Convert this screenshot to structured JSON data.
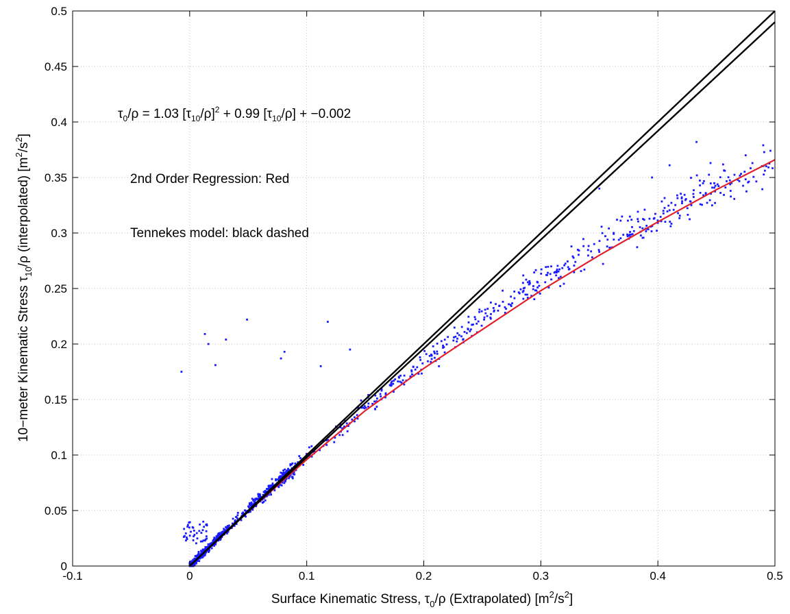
{
  "chart_data": {
    "type": "scatter",
    "xlim": [
      -0.1,
      0.5
    ],
    "ylim": [
      0,
      0.5
    ],
    "xticks": [
      "-0.1",
      "0",
      "0.1",
      "0.2",
      "0.3",
      "0.4",
      "0.5"
    ],
    "yticks": [
      "0",
      "0.05",
      "0.1",
      "0.15",
      "0.2",
      "0.25",
      "0.3",
      "0.35",
      "0.4",
      "0.45",
      "0.5"
    ],
    "grid": true,
    "xlabel": {
      "pre": "Surface Kinematic Stress, τ",
      "sub": "0",
      "mid": "/ρ (Extrapolated) [m",
      "sup": "2",
      "post": "/s",
      "sup2": "2",
      "end": "]"
    },
    "ylabel": {
      "pre": "10−meter Kinematic Stress τ",
      "sub": "10",
      "mid": "/ρ (interpolated) [m",
      "sup": "2",
      "post": "/s",
      "sup2": "2",
      "end": "]"
    },
    "annotations": {
      "equation": {
        "p1": "τ",
        "s1": "0",
        "p2": "/ρ = 1.03 [τ",
        "s2": "10",
        "p3": "/ρ]",
        "u1": "2",
        "p4": " + 0.99 [τ",
        "s3": "10",
        "p5": "/ρ] + −0.002"
      },
      "regression": "2nd Order Regression: Red",
      "model": "Tennekes model: black dashed"
    },
    "series": [
      {
        "kind": "scatter",
        "color": "#1a1aff",
        "trend": {
          "a": -0.65,
          "b": 1.05,
          "c": 0.0
        },
        "outliers": [
          [
            -0.007,
            0.175
          ],
          [
            0.013,
            0.209
          ],
          [
            0.016,
            0.2
          ],
          [
            0.022,
            0.181
          ],
          [
            0.031,
            0.204
          ],
          [
            0.049,
            0.222
          ],
          [
            0.078,
            0.187
          ],
          [
            0.081,
            0.193
          ],
          [
            0.112,
            0.18
          ],
          [
            0.118,
            0.22
          ],
          [
            0.137,
            0.195
          ],
          [
            0.35,
            0.34
          ],
          [
            0.433,
            0.382
          ],
          [
            0.49,
            0.379
          ],
          [
            0.445,
            0.363
          ],
          [
            0.475,
            0.37
          ],
          [
            0.395,
            0.35
          ],
          [
            0.41,
            0.361
          ]
        ]
      },
      {
        "kind": "line",
        "color": "#e0202a",
        "x": [
          0.0,
          0.05,
          0.1,
          0.15,
          0.2,
          0.25,
          0.3,
          0.35,
          0.4,
          0.45,
          0.5
        ],
        "y": [
          0.0,
          0.049,
          0.096,
          0.14,
          0.178,
          0.213,
          0.248,
          0.28,
          0.31,
          0.339,
          0.366
        ]
      },
      {
        "kind": "line",
        "color": "#000000",
        "x": [
          0.0,
          0.1,
          0.2,
          0.3,
          0.4,
          0.5
        ],
        "y": [
          0.0,
          0.1,
          0.2,
          0.3,
          0.4,
          0.5
        ]
      },
      {
        "kind": "line",
        "color": "#000000",
        "x": [
          0.0,
          0.1,
          0.2,
          0.3,
          0.4,
          0.5
        ],
        "y": [
          0.0,
          0.098,
          0.196,
          0.294,
          0.392,
          0.49
        ]
      }
    ]
  }
}
